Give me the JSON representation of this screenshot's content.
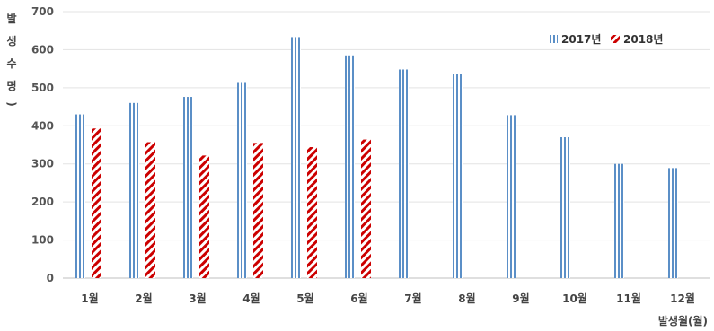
{
  "chart_data": {
    "type": "bar",
    "title": "",
    "xlabel": "발생월(월)",
    "ylabel_chars": [
      "발",
      "생",
      "수",
      "명",
      ")"
    ],
    "ylim": [
      0,
      700
    ],
    "yticks": [
      "0",
      "100",
      "200",
      "300",
      "400",
      "500",
      "600",
      "700"
    ],
    "grid": true,
    "legend_position": "top-right",
    "categories": [
      "1월",
      "2월",
      "3월",
      "4월",
      "5월",
      "6월",
      "7월",
      "8월",
      "9월",
      "10월",
      "11월",
      "12월"
    ],
    "series": [
      {
        "name": "2017년",
        "color": "#5b8fc7",
        "pattern": "vertical-stripes",
        "values": [
          430,
          460,
          476,
          515,
          633,
          585,
          548,
          536,
          428,
          370,
          300,
          289
        ]
      },
      {
        "name": "2018년",
        "color": "#cc0000",
        "pattern": "diagonal-stripes",
        "values": [
          393,
          357,
          322,
          355,
          344,
          364,
          null,
          null,
          null,
          null,
          null,
          null
        ]
      }
    ]
  }
}
